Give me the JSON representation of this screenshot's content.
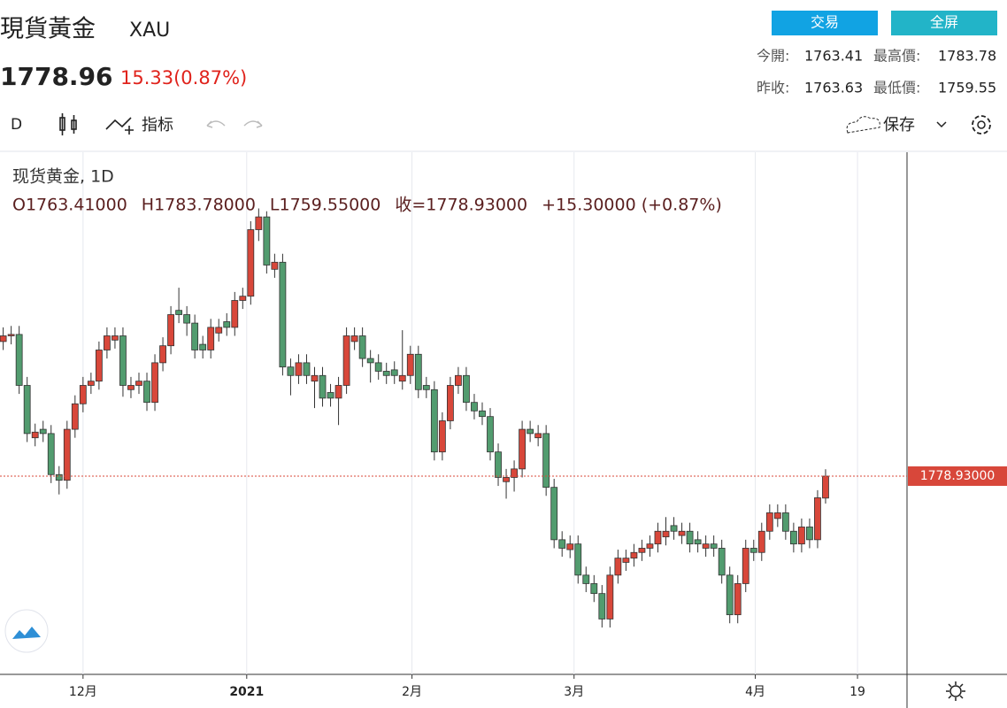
{
  "header": {
    "title": "現貨黃金",
    "symbol": "XAU",
    "price": "1778.96",
    "change": "15.33(0.87%)",
    "buttons": [
      "交易",
      "全屏"
    ],
    "stats": [
      {
        "label": "今開:",
        "value": "1763.41"
      },
      {
        "label": "最高價:",
        "value": "1783.78"
      },
      {
        "label": "昨收:",
        "value": "1763.63"
      },
      {
        "label": "最低價:",
        "value": "1759.55"
      }
    ]
  },
  "toolbar": {
    "interval": "D",
    "indicators": "指标",
    "save": "保存"
  },
  "chart_data": {
    "type": "candlestick",
    "title": "现货黄金, 1D",
    "legend": [
      "O1763.41000",
      "H1783.78000",
      "L1759.55000",
      "收=1778.93000",
      "+15.30000 (+0.87%)"
    ],
    "up_color": "#d8473a",
    "down_color": "#529c6f",
    "last_label": "1778.93000",
    "open": [
      1874,
      1878,
      1879,
      1843,
      1806,
      1812,
      1809,
      1780,
      1776,
      1812,
      1830,
      1843,
      1846,
      1868,
      1875,
      1878,
      1840,
      1843,
      1846,
      1831,
      1859,
      1871,
      1896,
      1893,
      1887,
      1872,
      1868,
      1880,
      1888,
      1884,
      1903,
      1906,
      1953,
      1962,
      1925,
      1930,
      1856,
      1850,
      1859,
      1846,
      1850,
      1838,
      1834,
      1843,
      1874,
      1878,
      1862,
      1859,
      1853,
      1854,
      1846,
      1850,
      1865,
      1843,
      1840,
      1796,
      1818,
      1843,
      1850,
      1831,
      1825,
      1821,
      1796,
      1775,
      1778,
      1784,
      1812,
      1806,
      1809,
      1771,
      1734,
      1727,
      1731,
      1709,
      1703,
      1696,
      1678,
      1709,
      1718,
      1721,
      1725,
      1728,
      1731,
      1736,
      1744,
      1737,
      1740,
      1734,
      1728,
      1731,
      1728,
      1709,
      1681,
      1703,
      1728,
      1725,
      1740,
      1749,
      1753,
      1740,
      1731,
      1743,
      1734,
      1763.41
    ],
    "high": [
      1884,
      1885,
      1885,
      1849,
      1816,
      1818,
      1815,
      1786,
      1818,
      1836,
      1849,
      1852,
      1874,
      1884,
      1884,
      1884,
      1849,
      1852,
      1852,
      1865,
      1877,
      1899,
      1912,
      1899,
      1893,
      1878,
      1890,
      1890,
      1894,
      1909,
      1912,
      1959,
      1968,
      1966,
      1936,
      1936,
      1862,
      1865,
      1865,
      1856,
      1856,
      1844,
      1849,
      1884,
      1884,
      1884,
      1868,
      1865,
      1859,
      1860,
      1882,
      1871,
      1871,
      1849,
      1846,
      1824,
      1849,
      1856,
      1856,
      1837,
      1831,
      1827,
      1802,
      1784,
      1790,
      1818,
      1818,
      1815,
      1815,
      1777,
      1740,
      1737,
      1737,
      1715,
      1709,
      1702,
      1715,
      1727,
      1727,
      1731,
      1734,
      1737,
      1746,
      1750,
      1750,
      1746,
      1746,
      1740,
      1737,
      1737,
      1734,
      1715,
      1709,
      1734,
      1734,
      1746,
      1759,
      1759,
      1759,
      1746,
      1749,
      1749,
      1769,
      1783.78
    ],
    "low": [
      1868,
      1872,
      1837,
      1803,
      1800,
      1803,
      1774,
      1766,
      1770,
      1806,
      1824,
      1837,
      1840,
      1862,
      1869,
      1835,
      1834,
      1837,
      1825,
      1825,
      1853,
      1865,
      1887,
      1878,
      1862,
      1862,
      1862,
      1874,
      1878,
      1878,
      1897,
      1900,
      1945,
      1922,
      1919,
      1850,
      1836,
      1844,
      1844,
      1827,
      1828,
      1828,
      1815,
      1837,
      1868,
      1856,
      1845,
      1847,
      1844,
      1844,
      1840,
      1844,
      1834,
      1834,
      1790,
      1790,
      1812,
      1837,
      1825,
      1819,
      1815,
      1790,
      1772,
      1763,
      1768,
      1778,
      1803,
      1800,
      1765,
      1728,
      1722,
      1721,
      1703,
      1697,
      1690,
      1672,
      1672,
      1703,
      1712,
      1715,
      1719,
      1722,
      1725,
      1730,
      1734,
      1731,
      1725,
      1725,
      1722,
      1722,
      1703,
      1675,
      1675,
      1697,
      1719,
      1719,
      1734,
      1743,
      1734,
      1725,
      1725,
      1728,
      1728,
      1759.55
    ],
    "close": [
      1878,
      1879,
      1843,
      1809,
      1810,
      1809,
      1780,
      1776,
      1812,
      1830,
      1843,
      1846,
      1868,
      1878,
      1878,
      1843,
      1843,
      1846,
      1831,
      1859,
      1871,
      1893,
      1893,
      1887,
      1868,
      1868,
      1884,
      1884,
      1884,
      1903,
      1906,
      1953,
      1962,
      1928,
      1930,
      1856,
      1850,
      1859,
      1850,
      1850,
      1834,
      1834,
      1843,
      1878,
      1878,
      1862,
      1859,
      1853,
      1850,
      1850,
      1850,
      1865,
      1840,
      1840,
      1796,
      1818,
      1843,
      1850,
      1831,
      1825,
      1821,
      1796,
      1778,
      1778,
      1784,
      1812,
      1809,
      1809,
      1771,
      1734,
      1728,
      1731,
      1709,
      1703,
      1696,
      1678,
      1709,
      1721,
      1721,
      1725,
      1728,
      1731,
      1740,
      1740,
      1740,
      1740,
      1731,
      1731,
      1731,
      1728,
      1709,
      1681,
      1703,
      1728,
      1725,
      1740,
      1753,
      1753,
      1740,
      1731,
      1743,
      1734,
      1763.63,
      1778.93
    ],
    "xlim": [
      -0.4,
      113.2
    ],
    "ylim": [
      1638.9,
      2007.7
    ],
    "xticks": [
      {
        "value": 10,
        "label": "12月"
      },
      {
        "value": 30.5,
        "label": "2021"
      },
      {
        "value": 51.2,
        "label": "2月"
      },
      {
        "value": 71.5,
        "label": "3月"
      },
      {
        "value": 94.2,
        "label": "4月"
      },
      {
        "value": 107,
        "label": "19"
      }
    ],
    "grid": true
  }
}
